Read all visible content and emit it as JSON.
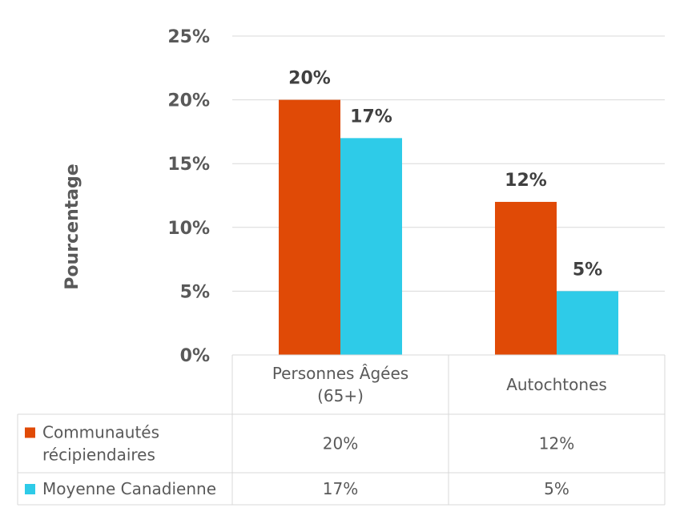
{
  "chart_data": {
    "type": "bar",
    "ylabel": "Pourcentage",
    "ylim": [
      0,
      25
    ],
    "yticks": [
      "0%",
      "5%",
      "10%",
      "15%",
      "20%",
      "25%"
    ],
    "ytick_values": [
      0,
      5,
      10,
      15,
      20,
      25
    ],
    "categories": [
      {
        "lines": [
          "Personnes Âgées",
          "(65+)"
        ]
      },
      {
        "lines": [
          "Autochtones"
        ]
      }
    ],
    "series": [
      {
        "name": "Communautés récipiendaires",
        "legend_lines": [
          "Communautés",
          "récipiendaires"
        ],
        "color": "#E04A06",
        "values": [
          20,
          12
        ],
        "labels": [
          "20%",
          "12%"
        ]
      },
      {
        "name": "Moyenne Canadienne",
        "legend_lines": [
          "Moyenne Canadienne"
        ],
        "color": "#2ECBE8",
        "values": [
          17,
          5
        ],
        "labels": [
          "17%",
          "5%"
        ]
      }
    ],
    "gridlines": true,
    "legend_position": "bottom-table"
  }
}
